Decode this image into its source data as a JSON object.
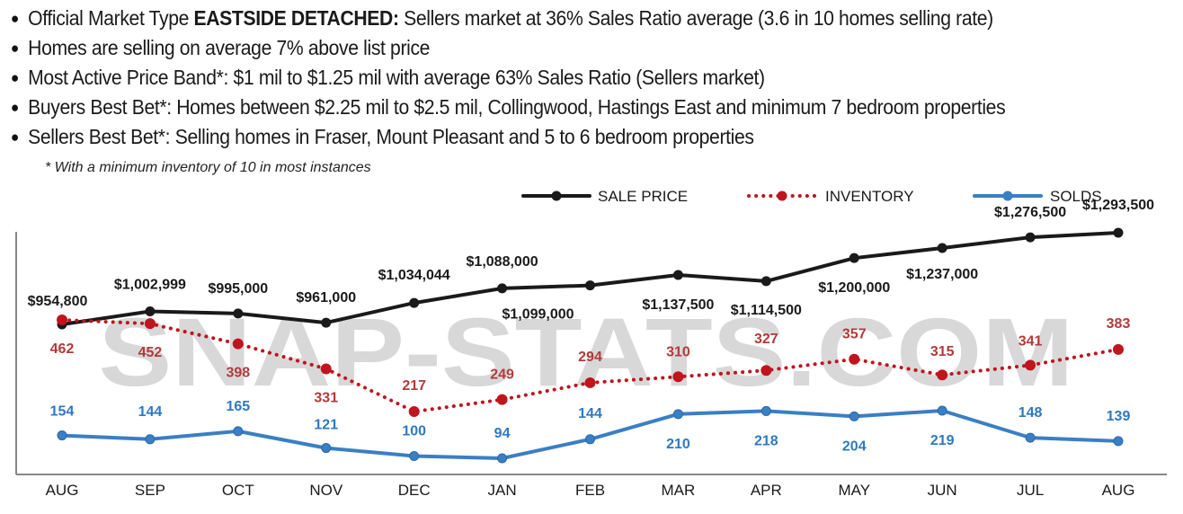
{
  "bullets": [
    {
      "prefix": "Official Market Type ",
      "bold": "EASTSIDE DETACHED:",
      "suffix": " Sellers market at 36% Sales Ratio average (3.6 in 10 homes selling rate)"
    },
    {
      "prefix": "Homes are selling on average 7% above list price",
      "bold": "",
      "suffix": ""
    },
    {
      "prefix": "Most Active Price Band*: $1 mil to $1.25 mil with average 63% Sales Ratio (Sellers market)",
      "bold": "",
      "suffix": ""
    },
    {
      "prefix": "Buyers Best Bet*: Homes between $2.25 mil to $2.5 mil, Collingwood, Hastings East and minimum 7 bedroom properties",
      "bold": "",
      "suffix": ""
    },
    {
      "prefix": "Sellers Best Bet*: Selling homes in Fraser, Mount Pleasant and 5 to 6 bedroom properties",
      "bold": "",
      "suffix": ""
    }
  ],
  "footnote": "* With a minimum inventory of 10 in most instances",
  "watermark": "SNAP-STATS.COM",
  "chart_data": {
    "type": "line",
    "categories": [
      "AUG",
      "SEP",
      "OCT",
      "NOV",
      "DEC",
      "JAN",
      "FEB",
      "MAR",
      "APR",
      "MAY",
      "JUN",
      "JUL",
      "AUG"
    ],
    "series": [
      {
        "name": "SALE PRICE",
        "color": "#1a1a1a",
        "style": "solid",
        "values": [
          954800,
          1002999,
          995000,
          961000,
          1034044,
          1088000,
          1099000,
          1137500,
          1114500,
          1200000,
          1237000,
          1276500,
          1293500
        ],
        "labels": [
          "$954,800",
          "$1,002,999",
          "$995,000",
          "$961,000",
          "$1,034,044",
          "$1,088,000",
          "$1,099,000",
          "$1,137,500",
          "$1,114,500",
          "$1,200,000",
          "$1,237,000",
          "$1,276,500",
          "$1,293,500"
        ]
      },
      {
        "name": "INVENTORY",
        "color": "#c0141e",
        "style": "dotted",
        "values": [
          462,
          452,
          398,
          331,
          217,
          249,
          294,
          310,
          327,
          357,
          315,
          341,
          383
        ],
        "labels": [
          "462",
          "452",
          "398",
          "331",
          "217",
          "249",
          "294",
          "310",
          "327",
          "357",
          "315",
          "341",
          "383"
        ]
      },
      {
        "name": "SOLDS",
        "color": "#3a7fc4",
        "style": "solid",
        "values": [
          154,
          144,
          165,
          121,
          100,
          94,
          144,
          210,
          218,
          204,
          219,
          148,
          139
        ],
        "labels": [
          "154",
          "144",
          "165",
          "121",
          "100",
          "94",
          "144",
          "210",
          "218",
          "204",
          "219",
          "148",
          "139"
        ]
      }
    ],
    "legend_position": "top-right",
    "grid": false
  }
}
